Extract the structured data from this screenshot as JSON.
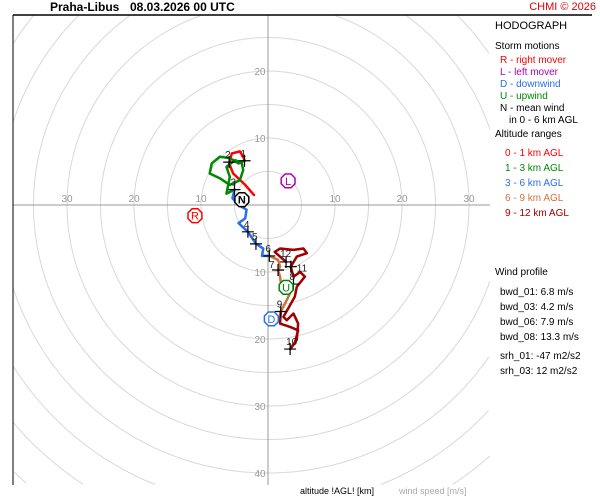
{
  "header": {
    "station": "Praha-Libus",
    "datetime": "08.03.2026 00 UTC",
    "copyright": "CHMI © 2026"
  },
  "legend": {
    "title": "HODOGRAPH",
    "storm_title": "Storm motions",
    "storm_items": [
      {
        "text": "R - right mover",
        "color": "#ff0000"
      },
      {
        "text": "L - left mover",
        "color": "#b000b0"
      },
      {
        "text": "D - downwind",
        "color": "#2a6ee8"
      },
      {
        "text": "U - upwind",
        "color": "#008800"
      },
      {
        "text": "N - mean wind",
        "color": "#000000"
      },
      {
        "text": "in 0 - 6 km AGL",
        "color": "#000000"
      }
    ],
    "alt_title": "Altitude ranges",
    "alt_items": [
      {
        "text": "0 - 1 km AGL",
        "color": "#ff0000"
      },
      {
        "text": "1 - 3 km AGL",
        "color": "#008800"
      },
      {
        "text": "3 - 6 km AGL",
        "color": "#2a6ee8"
      },
      {
        "text": "6 - 9 km AGL",
        "color": "#d2703c"
      },
      {
        "text": "9 - 12 km AGL",
        "color": "#a00000"
      }
    ],
    "profile_title": "Wind profile",
    "profile_items": [
      "bwd_01: 6.8 m/s",
      "bwd_03: 4.2 m/s",
      "bwd_06: 7.9 m/s",
      "bwd_08: 13.3 m/s"
    ],
    "srh_items": [
      "srh_01: -47 m2/s2",
      "srh_03: 12 m2/s2"
    ]
  },
  "footer": {
    "altitude_label": "altitude !AGL! [km]",
    "speed_label": "wind speed [m/s]"
  },
  "chart_data": {
    "type": "hodograph",
    "units": "m/s",
    "ring_step": 5,
    "tick_labels": {
      "left": [
        "30",
        "20",
        "10"
      ],
      "right": [
        "10",
        "20",
        "30"
      ],
      "up": [
        "10",
        "20"
      ],
      "down": [
        "10",
        "20",
        "30",
        "40"
      ]
    },
    "segments": [
      {
        "range": "0 - 1 km AGL",
        "color": "#ff0000",
        "uv": [
          [
            -2.1,
            1.5
          ],
          [
            -3.4,
            3.0
          ],
          [
            -5.2,
            4.7
          ],
          [
            -5.8,
            6.2
          ],
          [
            -5.4,
            7.7
          ],
          [
            -4.2,
            8.0
          ],
          [
            -3.7,
            7.2
          ],
          [
            -3.5,
            6.6
          ]
        ]
      },
      {
        "range": "1 - 3 km AGL",
        "color": "#008800",
        "uv": [
          [
            -3.5,
            6.6
          ],
          [
            -4.4,
            6.2
          ],
          [
            -5.7,
            7.0
          ],
          [
            -7.2,
            7.2
          ],
          [
            -8.4,
            6.2
          ],
          [
            -8.7,
            4.7
          ],
          [
            -7.2,
            4.0
          ],
          [
            -5.7,
            3.0
          ],
          [
            -4.2,
            3.7
          ],
          [
            -3.7,
            5.2
          ],
          [
            -3.9,
            6.2
          ],
          [
            -4.9,
            6.7
          ],
          [
            -6.2,
            5.7
          ],
          [
            -5.7,
            4.2
          ],
          [
            -6.2,
            1.7
          ],
          [
            -5.0,
            2.3
          ]
        ]
      },
      {
        "range": "3 - 6 km AGL",
        "color": "#2a6ee8",
        "uv": [
          [
            -5.0,
            2.3
          ],
          [
            -5.3,
            1.0
          ],
          [
            -4.4,
            0
          ],
          [
            -3.2,
            -0.7
          ],
          [
            -3.4,
            -2.0
          ],
          [
            -4.4,
            -2.7
          ],
          [
            -3.0,
            -4.0
          ],
          [
            -1.8,
            -5.8
          ],
          [
            -0.7,
            -6.5
          ],
          [
            -0.9,
            -7.6
          ],
          [
            0.2,
            -7.6
          ]
        ]
      },
      {
        "range": "6 - 9 km AGL",
        "color": "#d2703c",
        "uv": [
          [
            0.2,
            -7.6
          ],
          [
            1.5,
            -8.2
          ],
          [
            1.8,
            -9.2
          ],
          [
            1.5,
            -9.7
          ],
          [
            1.8,
            -10.7
          ],
          [
            2.0,
            -12.2
          ],
          [
            3.5,
            -12.7
          ],
          [
            2.8,
            -14.2
          ],
          [
            1.9,
            -15.9
          ]
        ]
      },
      {
        "range": "9 - 12 km AGL",
        "color": "#a00000",
        "uv": [
          [
            1.9,
            -15.9
          ],
          [
            1.8,
            -17.7
          ],
          [
            3.3,
            -18.2
          ],
          [
            4.5,
            -18.7
          ],
          [
            4.0,
            -20.6
          ],
          [
            3.3,
            -21.5
          ],
          [
            4.3,
            -20.1
          ],
          [
            4.5,
            -17.7
          ],
          [
            3.8,
            -16.2
          ],
          [
            2.8,
            -17.2
          ],
          [
            2.3,
            -16.7
          ],
          [
            4.0,
            -13.7
          ],
          [
            4.3,
            -12.2
          ],
          [
            5.5,
            -10.7
          ],
          [
            4.8,
            -10.0
          ],
          [
            3.8,
            -10.7
          ],
          [
            3.4,
            -9.2
          ],
          [
            4.3,
            -7.7
          ],
          [
            5.8,
            -7.2
          ],
          [
            5.3,
            -6.5
          ],
          [
            3.8,
            -6.7
          ],
          [
            1.8,
            -6.5
          ],
          [
            1.0,
            -7.0
          ],
          [
            2.7,
            -8.5
          ]
        ]
      }
    ],
    "altitude_markers": [
      {
        "km": "1",
        "uv": [
          -3.5,
          6.6
        ]
      },
      {
        "km": "2",
        "uv": [
          -5.8,
          6.4
        ]
      },
      {
        "km": "3",
        "uv": [
          -5.0,
          2.3
        ]
      },
      {
        "km": "4",
        "uv": [
          -3.0,
          -4.0
        ]
      },
      {
        "km": "5",
        "uv": [
          -1.8,
          -5.8
        ]
      },
      {
        "km": "6",
        "uv": [
          0.2,
          -7.6
        ]
      },
      {
        "km": "7",
        "uv": [
          1.5,
          -9.7
        ]
      },
      {
        "km": "8",
        "uv": [
          3.8,
          -11.8
        ]
      },
      {
        "km": "9",
        "uv": [
          1.9,
          -15.9
        ]
      },
      {
        "km": "10",
        "uv": [
          3.3,
          -21.5
        ]
      },
      {
        "km": "11",
        "uv": [
          3.4,
          -9.2
        ]
      },
      {
        "km": "12",
        "uv": [
          2.7,
          -8.5
        ]
      }
    ],
    "storm_motions": [
      {
        "label": "R",
        "uv": [
          -10.9,
          -1.6
        ],
        "color": "#ff0000"
      },
      {
        "label": "L",
        "uv": [
          3.0,
          3.6
        ],
        "color": "#b000b0"
      },
      {
        "label": "N",
        "uv": [
          -3.9,
          0.8
        ],
        "color": "#000000"
      },
      {
        "label": "U",
        "uv": [
          2.7,
          -12.3
        ],
        "color": "#008800"
      },
      {
        "label": "D",
        "uv": [
          0.5,
          -17.0
        ],
        "color": "#2a6ee8"
      }
    ]
  }
}
